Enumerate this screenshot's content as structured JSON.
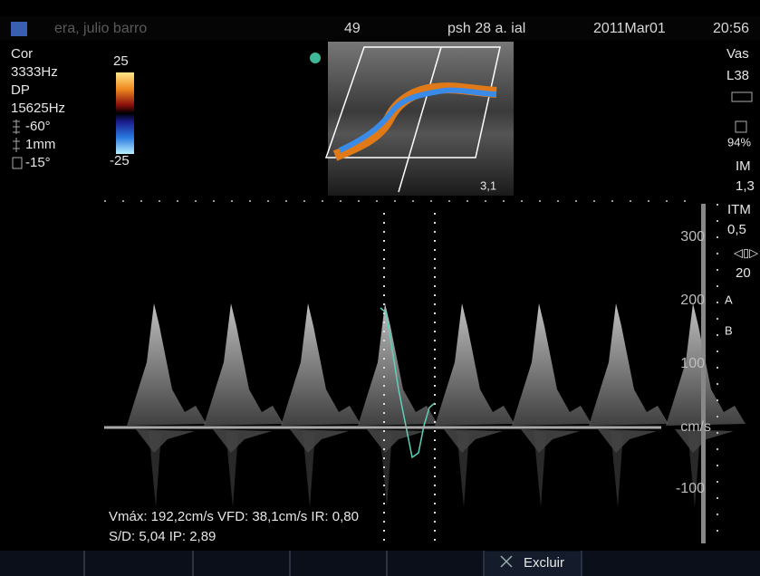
{
  "header": {
    "patient": "era, julio barro",
    "frame": "49",
    "facility": "psh 28 a.  ial",
    "date": "2011Mar01",
    "time": "20:56"
  },
  "left_panel": {
    "mode": "Cor",
    "frequency": "3333Hz",
    "doppler": "DP",
    "prf": "15625Hz",
    "angle": "-60°",
    "gate": "1mm",
    "steer": "-15°"
  },
  "color_scale": {
    "top": "25",
    "bottom": "-25"
  },
  "right_panel": {
    "preset": "Vas",
    "probe": "L38",
    "power": "94%",
    "mi_label": "IM",
    "mi": "1,3",
    "tis_label": "ITM",
    "tis": "0,5",
    "gain": "20",
    "a_label": "A",
    "b_label": "B"
  },
  "image_depth": "3,1",
  "velocity_scale": {
    "labels": [
      "300",
      "200",
      "100",
      "-100"
    ],
    "unit": "cm/s"
  },
  "measurements": {
    "line1": "Vmáx: 192,2cm/s VFD: 38,1cm/s IR: 0,80",
    "line2": "S/D: 5,04 IP: 2,89"
  },
  "toolbar": {
    "exclude": "Excluir"
  }
}
